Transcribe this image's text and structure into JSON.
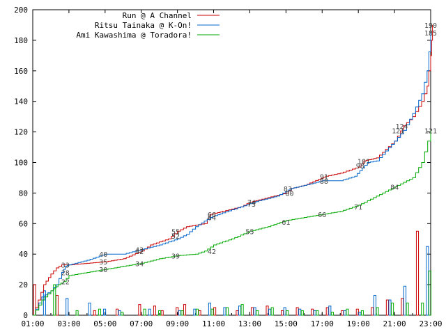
{
  "chart_data": {
    "type": "line",
    "title": "",
    "xlabel": "",
    "ylabel": "",
    "ylim": [
      0,
      200
    ],
    "xlim": [
      "01:00",
      "23:00"
    ],
    "yticks": [
      0,
      20,
      40,
      60,
      80,
      100,
      120,
      140,
      160,
      180,
      200
    ],
    "xticks": [
      "01:00",
      "03:00",
      "05:00",
      "07:00",
      "09:00",
      "11:00",
      "13:00",
      "15:00",
      "17:00",
      "19:00",
      "21:00",
      "23:00"
    ],
    "legend_position": "top-left",
    "grid": false,
    "series": [
      {
        "name": "Run @ A Channel",
        "color": "#cc0000",
        "cumulative": [
          [
            1.0,
            0
          ],
          [
            1.3,
            10
          ],
          [
            1.6,
            20
          ],
          [
            2.0,
            27
          ],
          [
            2.3,
            31
          ],
          [
            2.6,
            33
          ],
          [
            3.0,
            33
          ],
          [
            4.0,
            34
          ],
          [
            5.0,
            35
          ],
          [
            6.0,
            37
          ],
          [
            7.0,
            42
          ],
          [
            7.5,
            46
          ],
          [
            8.5,
            50
          ],
          [
            9.0,
            55
          ],
          [
            9.5,
            58
          ],
          [
            10.5,
            60
          ],
          [
            10.8,
            66
          ],
          [
            11.5,
            68
          ],
          [
            12.5,
            71
          ],
          [
            13.0,
            74
          ],
          [
            14.0,
            77
          ],
          [
            15.0,
            80
          ],
          [
            15.3,
            83
          ],
          [
            16.0,
            85
          ],
          [
            16.8,
            89
          ],
          [
            17.2,
            91
          ],
          [
            18.0,
            93
          ],
          [
            19.0,
            97
          ],
          [
            19.3,
            101
          ],
          [
            20.0,
            103
          ],
          [
            21.0,
            114
          ],
          [
            21.5,
            124
          ],
          [
            22.0,
            130
          ],
          [
            22.5,
            140
          ],
          [
            22.8,
            150
          ],
          [
            23.0,
            170
          ],
          [
            23.1,
            190
          ]
        ],
        "point_labels": [
          {
            "x": 2.8,
            "y": 33,
            "text": "33"
          },
          {
            "x": 4.9,
            "y": 35,
            "text": "35"
          },
          {
            "x": 6.9,
            "y": 42,
            "text": "42"
          },
          {
            "x": 8.9,
            "y": 55,
            "text": "55"
          },
          {
            "x": 10.9,
            "y": 66,
            "text": "66"
          },
          {
            "x": 13.1,
            "y": 74,
            "text": "74"
          },
          {
            "x": 15.2,
            "y": 80,
            "text": "80"
          },
          {
            "x": 17.1,
            "y": 91,
            "text": "91"
          },
          {
            "x": 19.3,
            "y": 101,
            "text": "101"
          },
          {
            "x": 21.4,
            "y": 124,
            "text": "124"
          },
          {
            "x": 23.0,
            "y": 190,
            "text": "190"
          }
        ],
        "histogram": [
          20,
          0,
          0,
          13,
          0,
          0,
          0,
          0,
          3,
          0,
          0,
          4,
          0,
          0,
          7,
          0,
          6,
          3,
          0,
          5,
          7,
          0,
          3,
          0,
          5,
          0,
          0,
          3,
          0,
          5,
          0,
          6,
          0,
          3,
          0,
          5,
          0,
          4,
          0,
          5,
          0,
          3,
          0,
          4,
          0,
          5,
          0,
          10,
          0,
          11,
          0,
          55,
          0
        ]
      },
      {
        "name": "Ritsu Tainaka @ K-On!",
        "color": "#0066cc",
        "cumulative": [
          [
            1.0,
            0
          ],
          [
            1.5,
            12
          ],
          [
            2.0,
            16
          ],
          [
            2.3,
            20
          ],
          [
            2.6,
            28
          ],
          [
            2.8,
            32
          ],
          [
            3.0,
            33
          ],
          [
            4.0,
            36
          ],
          [
            5.0,
            40
          ],
          [
            6.0,
            40
          ],
          [
            7.0,
            43
          ],
          [
            8.0,
            46
          ],
          [
            9.0,
            50
          ],
          [
            9.5,
            53
          ],
          [
            10.0,
            58
          ],
          [
            10.8,
            64
          ],
          [
            11.5,
            67
          ],
          [
            12.5,
            71
          ],
          [
            13.5,
            75
          ],
          [
            14.5,
            78
          ],
          [
            15.3,
            83
          ],
          [
            16.0,
            85
          ],
          [
            17.0,
            88
          ],
          [
            18.0,
            88
          ],
          [
            18.8,
            91
          ],
          [
            19.5,
            100
          ],
          [
            20.0,
            101
          ],
          [
            21.0,
            114
          ],
          [
            21.5,
            121
          ],
          [
            22.0,
            132
          ],
          [
            22.5,
            145
          ],
          [
            22.8,
            160
          ],
          [
            23.0,
            185
          ]
        ],
        "point_labels": [
          {
            "x": 2.8,
            "y": 28,
            "text": "28"
          },
          {
            "x": 4.9,
            "y": 40,
            "text": "40"
          },
          {
            "x": 6.9,
            "y": 43,
            "text": "43"
          },
          {
            "x": 8.9,
            "y": 52,
            "text": "52"
          },
          {
            "x": 10.9,
            "y": 64,
            "text": "64"
          },
          {
            "x": 13.1,
            "y": 73,
            "text": "73"
          },
          {
            "x": 15.1,
            "y": 83,
            "text": "83"
          },
          {
            "x": 17.1,
            "y": 88,
            "text": "88"
          },
          {
            "x": 19.1,
            "y": 98,
            "text": "98"
          },
          {
            "x": 21.2,
            "y": 121,
            "text": "121"
          },
          {
            "x": 23.0,
            "y": 185,
            "text": "185"
          }
        ],
        "histogram": [
          0,
          16,
          0,
          0,
          11,
          0,
          0,
          8,
          0,
          4,
          0,
          3,
          0,
          0,
          0,
          4,
          0,
          0,
          0,
          3,
          0,
          4,
          0,
          8,
          0,
          5,
          0,
          6,
          0,
          5,
          0,
          4,
          0,
          5,
          0,
          4,
          0,
          3,
          0,
          6,
          0,
          3,
          0,
          2,
          0,
          13,
          0,
          10,
          0,
          19,
          0,
          0,
          45
        ]
      },
      {
        "name": "Ami Kawashima @ Toradora!",
        "color": "#00aa00",
        "cumulative": [
          [
            1.0,
            0
          ],
          [
            1.5,
            10
          ],
          [
            2.0,
            16
          ],
          [
            2.4,
            20
          ],
          [
            2.7,
            22
          ],
          [
            3.0,
            26
          ],
          [
            4.0,
            28
          ],
          [
            5.0,
            30
          ],
          [
            6.0,
            32
          ],
          [
            7.0,
            34
          ],
          [
            8.0,
            37
          ],
          [
            9.0,
            39
          ],
          [
            10.0,
            40
          ],
          [
            10.5,
            42
          ],
          [
            11.0,
            46
          ],
          [
            12.0,
            50
          ],
          [
            13.0,
            55
          ],
          [
            14.0,
            58
          ],
          [
            15.0,
            62
          ],
          [
            16.0,
            64
          ],
          [
            17.0,
            66
          ],
          [
            18.0,
            68
          ],
          [
            19.0,
            72
          ],
          [
            20.0,
            78
          ],
          [
            21.0,
            84
          ],
          [
            22.0,
            90
          ],
          [
            22.5,
            100
          ],
          [
            23.0,
            121
          ]
        ],
        "point_labels": [
          {
            "x": 2.8,
            "y": 22,
            "text": "22"
          },
          {
            "x": 4.9,
            "y": 30,
            "text": "30"
          },
          {
            "x": 6.9,
            "y": 34,
            "text": "34"
          },
          {
            "x": 8.9,
            "y": 39,
            "text": "39"
          },
          {
            "x": 10.9,
            "y": 42,
            "text": "42"
          },
          {
            "x": 13.0,
            "y": 55,
            "text": "55"
          },
          {
            "x": 15.0,
            "y": 61,
            "text": "61"
          },
          {
            "x": 17.0,
            "y": 66,
            "text": "66"
          },
          {
            "x": 19.0,
            "y": 71,
            "text": "71"
          },
          {
            "x": 21.0,
            "y": 84,
            "text": "84"
          },
          {
            "x": 23.0,
            "y": 121,
            "text": "121"
          }
        ],
        "histogram": [
          0,
          0,
          20,
          0,
          0,
          3,
          0,
          0,
          4,
          0,
          0,
          2,
          0,
          0,
          4,
          0,
          3,
          0,
          0,
          3,
          0,
          4,
          0,
          4,
          0,
          5,
          0,
          7,
          0,
          3,
          0,
          5,
          0,
          3,
          0,
          3,
          0,
          3,
          0,
          2,
          0,
          4,
          0,
          3,
          0,
          5,
          0,
          8,
          0,
          8,
          0,
          8,
          29
        ]
      }
    ]
  }
}
